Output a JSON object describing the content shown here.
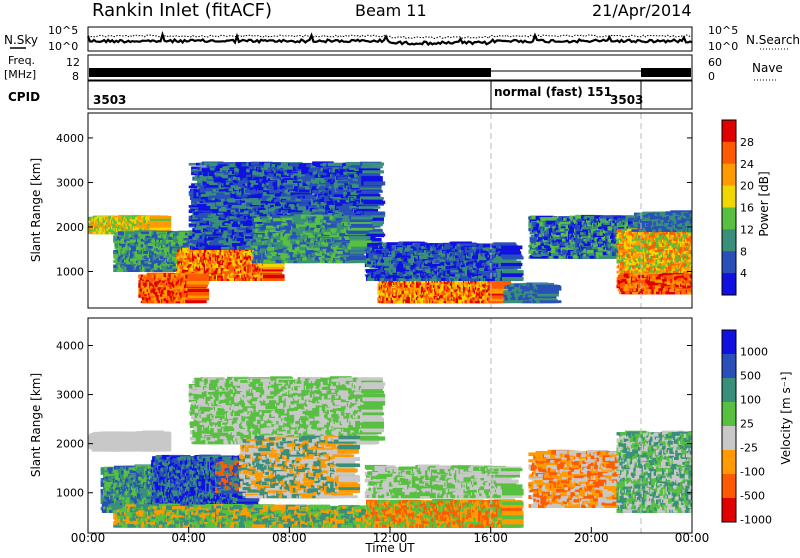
{
  "header": {
    "station": "Rankin Inlet (fitACF)",
    "beam": "Beam 11",
    "date": "21/Apr/2014"
  },
  "noise_panel": {
    "left_label": "N.Sky",
    "right_label": "N.Search",
    "ticks": [
      "10^5",
      "10^0"
    ]
  },
  "freq_panel": {
    "left_label_1": "Freq.",
    "left_label_2": "[MHz]",
    "left_ticks": [
      "12",
      "8"
    ],
    "right_label": "Nave",
    "right_ticks": [
      "60",
      "0"
    ]
  },
  "cpid_panel": {
    "label": "CPID",
    "segments": [
      "3503",
      "normal (fast) 151",
      "3503"
    ]
  },
  "chart_data": [
    {
      "type": "heatmap",
      "name": "power",
      "ylabel": "Slant Range [km]",
      "yticks": [
        "1000",
        "2000",
        "3000",
        "4000"
      ],
      "ylim": [
        180,
        4560
      ],
      "colorbar_label": "Power [dB]",
      "colorbar_ticks": [
        "4",
        "8",
        "12",
        "16",
        "20",
        "24",
        "28"
      ],
      "colors": [
        "#1010e0",
        "#2850b8",
        "#3a8f7a",
        "#58c040",
        "#f2d600",
        "#ff9a00",
        "#ff5a00",
        "#e00000"
      ]
    },
    {
      "type": "heatmap",
      "name": "velocity",
      "ylabel": "Slant Range [km]",
      "yticks": [
        "1000",
        "2000",
        "3000",
        "4000"
      ],
      "ylim": [
        180,
        4560
      ],
      "colorbar_label": "Velocity [m s⁻¹]",
      "colorbar_ticks": [
        "1000",
        "500",
        "100",
        "25",
        "-25",
        "-100",
        "-500",
        "-1000"
      ],
      "colors": [
        "#1010e0",
        "#2850b8",
        "#3a8f7a",
        "#58c040",
        "#c8c8c8",
        "#ff9a00",
        "#ff5a00",
        "#e00000"
      ],
      "xlabel": "Time UT",
      "xticks": [
        "00:00",
        "04:00",
        "08:00",
        "12:00",
        "16:00",
        "20:00",
        "00:00"
      ]
    }
  ]
}
